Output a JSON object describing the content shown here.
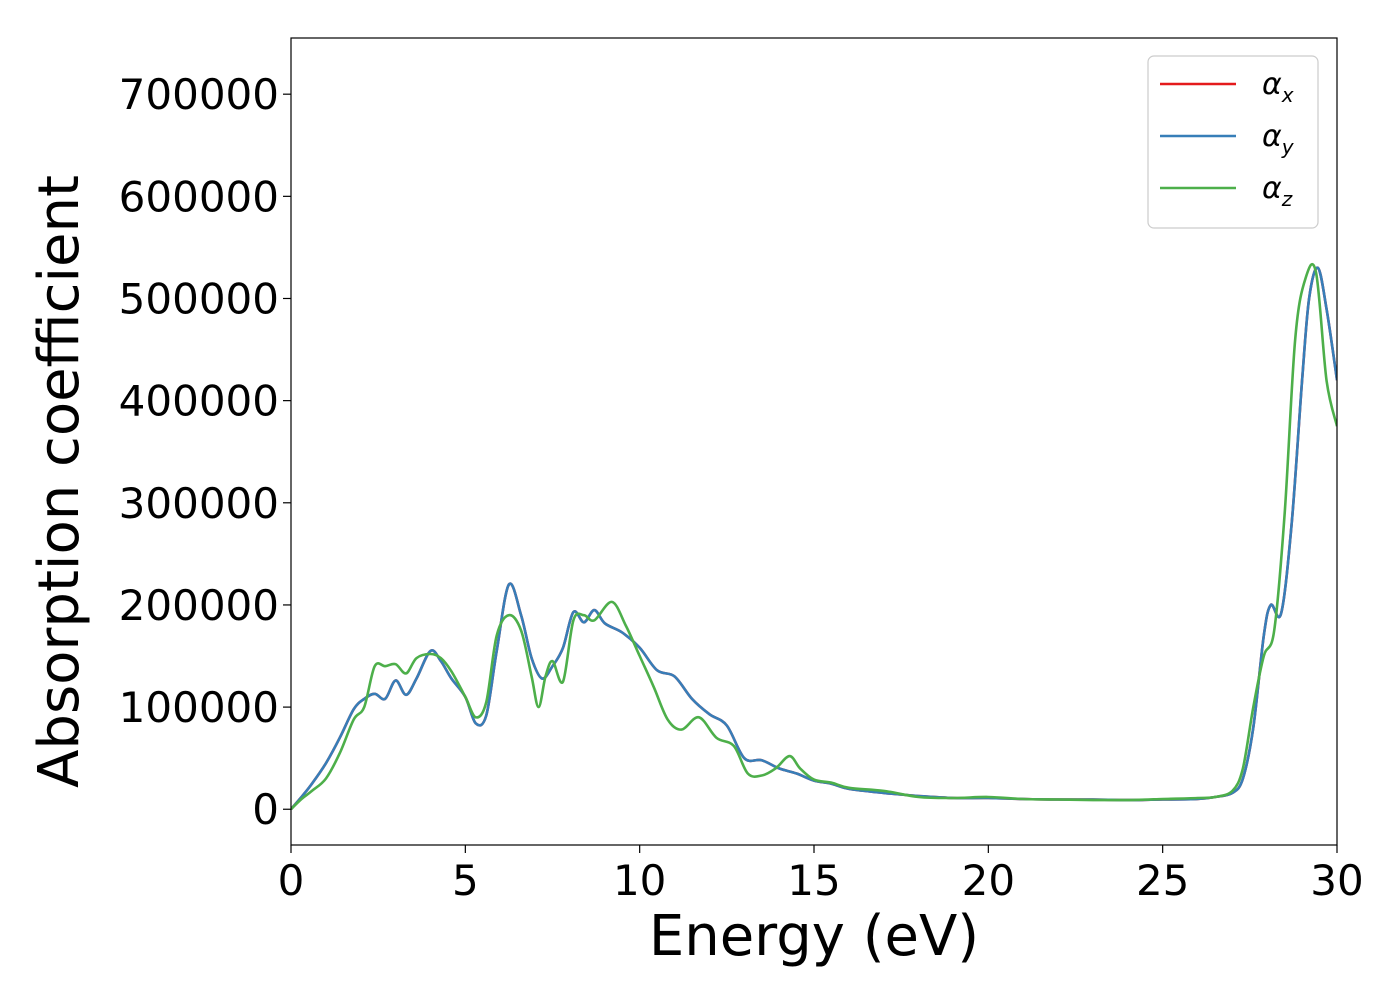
{
  "chart_data": {
    "type": "line",
    "xlabel": "Energy (eV)",
    "ylabel": "Absorption coefficient",
    "xlim": [
      0,
      30
    ],
    "ylim": [
      -35000,
      755000
    ],
    "xticks": [
      0,
      5,
      10,
      15,
      20,
      25,
      30
    ],
    "yticks": [
      0,
      100000,
      200000,
      300000,
      400000,
      500000,
      600000,
      700000
    ],
    "legend_position": "top-right",
    "grid": false,
    "series": [
      {
        "name": "α",
        "subscript": "x",
        "color": "#e41a1c",
        "x": [
          0,
          0.3,
          0.6,
          1.0,
          1.4,
          1.8,
          2.1,
          2.4,
          2.7,
          3.0,
          3.3,
          3.6,
          4.0,
          4.3,
          4.6,
          5.0,
          5.3,
          5.6,
          5.9,
          6.25,
          6.6,
          6.9,
          7.2,
          7.5,
          7.8,
          8.1,
          8.4,
          8.7,
          9.0,
          9.5,
          10.0,
          10.5,
          11.0,
          11.5,
          12.0,
          12.5,
          13.0,
          13.5,
          14.0,
          14.5,
          15.0,
          15.5,
          16.0,
          17.0,
          18.0,
          19.0,
          20.0,
          21.0,
          22.0,
          23.0,
          24.0,
          25.0,
          26.0,
          26.5,
          27.0,
          27.3,
          27.6,
          27.9,
          28.1,
          28.4,
          28.7,
          29.0,
          29.2,
          29.45,
          29.7,
          30.0
        ],
        "y": [
          0,
          12000,
          25000,
          45000,
          70000,
          98000,
          108000,
          113000,
          108000,
          126000,
          112000,
          128000,
          155000,
          145000,
          128000,
          110000,
          84000,
          92000,
          155000,
          220000,
          190000,
          148000,
          128000,
          140000,
          158000,
          193000,
          183000,
          195000,
          182000,
          173000,
          158000,
          136000,
          130000,
          108000,
          93000,
          82000,
          50000,
          48000,
          40000,
          35000,
          28000,
          25000,
          20000,
          16000,
          13000,
          11000,
          11000,
          10000,
          9500,
          9500,
          9000,
          9500,
          10000,
          12000,
          16000,
          30000,
          80000,
          170000,
          200000,
          192000,
          280000,
          420000,
          500000,
          530000,
          490000,
          420000
        ]
      },
      {
        "name": "α",
        "subscript": "y",
        "color": "#377eb8",
        "x": [
          0,
          0.3,
          0.6,
          1.0,
          1.4,
          1.8,
          2.1,
          2.4,
          2.7,
          3.0,
          3.3,
          3.6,
          4.0,
          4.3,
          4.6,
          5.0,
          5.3,
          5.6,
          5.9,
          6.25,
          6.6,
          6.9,
          7.2,
          7.5,
          7.8,
          8.1,
          8.4,
          8.7,
          9.0,
          9.5,
          10.0,
          10.5,
          11.0,
          11.5,
          12.0,
          12.5,
          13.0,
          13.5,
          14.0,
          14.5,
          15.0,
          15.5,
          16.0,
          17.0,
          18.0,
          19.0,
          20.0,
          21.0,
          22.0,
          23.0,
          24.0,
          25.0,
          26.0,
          26.5,
          27.0,
          27.3,
          27.6,
          27.9,
          28.1,
          28.4,
          28.7,
          29.0,
          29.2,
          29.45,
          29.7,
          30.0
        ],
        "y": [
          0,
          12000,
          25000,
          45000,
          70000,
          98000,
          108000,
          113000,
          108000,
          126000,
          112000,
          128000,
          155000,
          145000,
          128000,
          110000,
          84000,
          92000,
          155000,
          220000,
          190000,
          148000,
          128000,
          140000,
          158000,
          193000,
          183000,
          195000,
          182000,
          173000,
          158000,
          136000,
          130000,
          108000,
          93000,
          82000,
          50000,
          48000,
          40000,
          35000,
          28000,
          25000,
          20000,
          16000,
          13000,
          11000,
          11000,
          10000,
          9500,
          9500,
          9000,
          9500,
          10000,
          12000,
          16000,
          30000,
          80000,
          170000,
          200000,
          192000,
          280000,
          420000,
          500000,
          530000,
          490000,
          420000
        ]
      },
      {
        "name": "α",
        "subscript": "z",
        "color": "#4daf4a",
        "x": [
          0,
          0.3,
          0.6,
          1.0,
          1.4,
          1.8,
          2.1,
          2.4,
          2.7,
          3.0,
          3.3,
          3.6,
          4.0,
          4.3,
          4.6,
          5.0,
          5.3,
          5.6,
          5.9,
          6.25,
          6.6,
          6.9,
          7.1,
          7.3,
          7.5,
          7.8,
          8.1,
          8.4,
          8.7,
          9.2,
          9.6,
          10.0,
          10.4,
          10.8,
          11.2,
          11.7,
          12.2,
          12.7,
          13.1,
          13.5,
          13.9,
          14.3,
          14.6,
          15.0,
          15.5,
          16.0,
          17.0,
          18.0,
          19.0,
          20.0,
          21.0,
          22.0,
          23.0,
          24.0,
          25.0,
          26.0,
          26.5,
          27.0,
          27.3,
          27.6,
          27.9,
          28.2,
          28.5,
          28.8,
          29.1,
          29.4,
          29.7,
          30.0
        ],
        "y": [
          0,
          10000,
          18000,
          30000,
          55000,
          88000,
          100000,
          140000,
          140000,
          142000,
          133000,
          148000,
          152000,
          148000,
          135000,
          110000,
          90000,
          105000,
          170000,
          190000,
          175000,
          130000,
          100000,
          130000,
          145000,
          125000,
          185000,
          190000,
          185000,
          203000,
          180000,
          150000,
          120000,
          88000,
          78000,
          90000,
          70000,
          62000,
          35000,
          33000,
          40000,
          52000,
          40000,
          29000,
          26000,
          21000,
          18000,
          12000,
          11000,
          12000,
          10000,
          9500,
          9000,
          9000,
          10000,
          11000,
          12000,
          18000,
          40000,
          100000,
          150000,
          175000,
          290000,
          460000,
          520000,
          525000,
          420000,
          375000
        ]
      }
    ]
  }
}
